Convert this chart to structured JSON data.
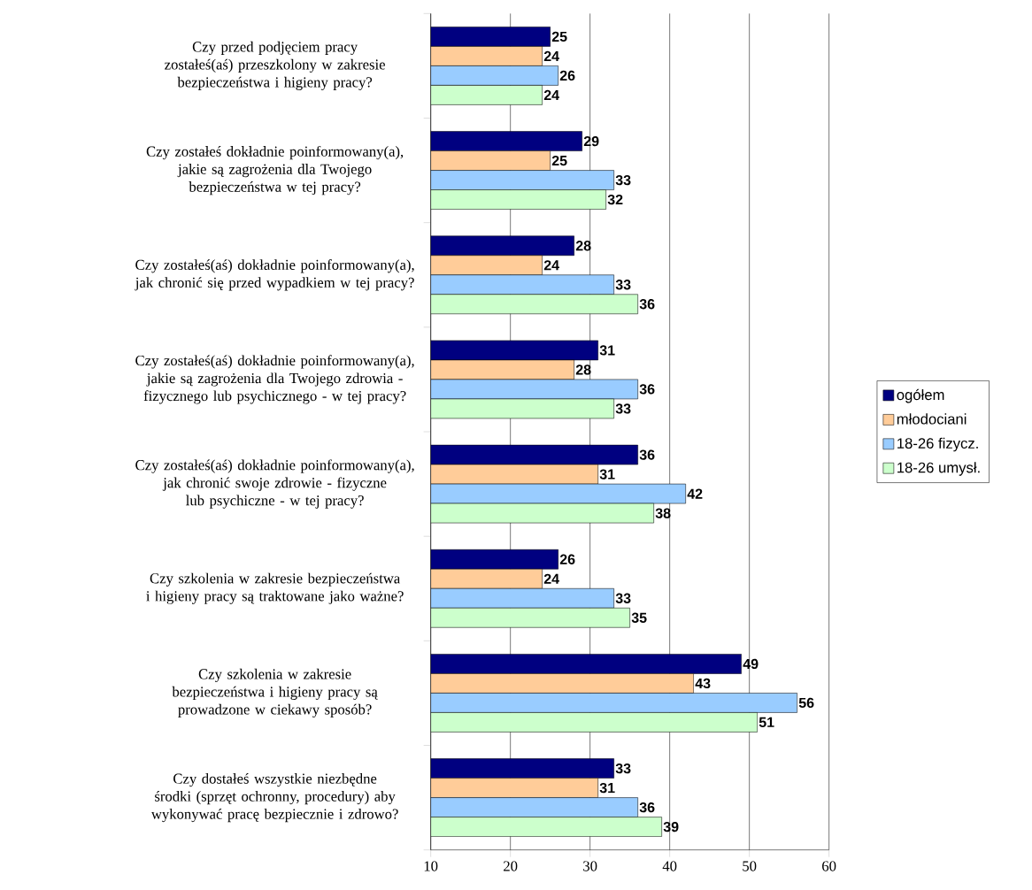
{
  "chart_data": {
    "type": "bar",
    "orientation": "horizontal",
    "categories": [
      "Czy przed podjęciem pracy zostałeś(aś) przeszkolony w zakresie bezpieczeństwa i higieny pracy?",
      "Czy zostałeś dokładnie poinformowany(a), jakie są zagrożenia dla Twojego bezpieczeństwa w tej pracy?",
      "Czy zostałeś(aś) dokładnie poinformowany(a), jak chronić się przed wypadkiem w tej pracy?",
      "Czy zostałeś(aś) dokładnie poinformowany(a), jakie są zagrożenia dla Twojego zdrowia - fizycznego lub psychicznego - w tej pracy?",
      "Czy zostałeś(aś) dokładnie poinformowany(a), jak chronić swoje zdrowie - fizyczne lub psychiczne - w tej pracy?",
      "Czy szkolenia w zakresie bezpieczeństwa i higieny pracy są traktowane jako ważne?",
      "Czy szkolenia w zakresie bezpieczeństwa i higieny pracy są prowadzone w ciekawy sposób?",
      "Czy dostałeś wszystkie niezbędne środki (sprzęt ochronny, procedury) aby wykonywać pracę bezpiecznie i zdrowo?"
    ],
    "series": [
      {
        "name": "ogółem",
        "color": "#000080",
        "values": [
          25,
          29,
          28,
          31,
          36,
          26,
          49,
          33
        ]
      },
      {
        "name": "młodociani",
        "color": "#ffcc99",
        "values": [
          24,
          25,
          24,
          28,
          31,
          24,
          43,
          31
        ]
      },
      {
        "name": "18-26 fizycz.",
        "color": "#99ccff",
        "values": [
          26,
          33,
          33,
          36,
          42,
          33,
          56,
          36
        ]
      },
      {
        "name": "18-26 umysł.",
        "color": "#ccffcc",
        "values": [
          24,
          32,
          36,
          33,
          38,
          35,
          51,
          39
        ]
      }
    ],
    "xlim": [
      10,
      60
    ],
    "xticks": [
      10,
      20,
      30,
      40,
      50,
      60
    ],
    "grid": "x",
    "legend": "right",
    "data_labels": true
  }
}
